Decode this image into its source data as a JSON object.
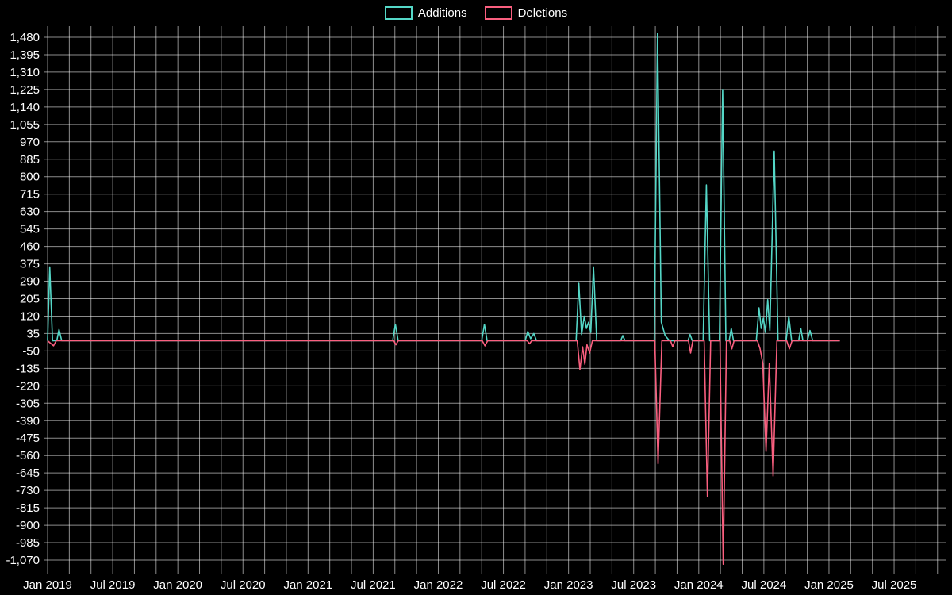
{
  "chart_data": {
    "type": "line",
    "title": "",
    "legend_position": "top-center",
    "grid": true,
    "background_color": "#000000",
    "grid_color": "rgba(255,255,255,0.55)",
    "text_color": "#ffffff",
    "x_axis": {
      "tick_labels": [
        "Jan 2019",
        "Jul 2019",
        "Jan 2020",
        "Jul 2020",
        "Jan 2021",
        "Jul 2021",
        "Jan 2022",
        "Jul 2022",
        "Jan 2023",
        "Jul 2023",
        "Jan 2024",
        "Jul 2024",
        "Jan 2025",
        "Jul 2025"
      ],
      "tick_month_offsets": [
        0,
        6,
        12,
        18,
        24,
        30,
        36,
        42,
        48,
        54,
        60,
        66,
        72,
        78
      ],
      "grid_month_step": 2,
      "max_month": 83
    },
    "y_axis": {
      "max": 1480,
      "min": -1070,
      "step": 85,
      "tick_values": [
        1480,
        1395,
        1310,
        1225,
        1140,
        1055,
        970,
        885,
        800,
        715,
        630,
        545,
        460,
        375,
        290,
        205,
        120,
        35,
        -50,
        -135,
        -220,
        -305,
        -390,
        -475,
        -560,
        -645,
        -730,
        -815,
        -900,
        -985,
        -1070
      ]
    },
    "series": [
      {
        "name": "Additions",
        "color": "#54d7c7",
        "points": [
          [
            0,
            0
          ],
          [
            0.2,
            360
          ],
          [
            0.45,
            0
          ],
          [
            0.85,
            0
          ],
          [
            1.05,
            55
          ],
          [
            1.3,
            0
          ],
          [
            31.8,
            0
          ],
          [
            32.05,
            80
          ],
          [
            32.3,
            0
          ],
          [
            40.0,
            0
          ],
          [
            40.25,
            80
          ],
          [
            40.5,
            0
          ],
          [
            44.0,
            0
          ],
          [
            44.25,
            45
          ],
          [
            44.5,
            10
          ],
          [
            44.8,
            35
          ],
          [
            45.05,
            0
          ],
          [
            48.7,
            0
          ],
          [
            48.95,
            280
          ],
          [
            49.2,
            30
          ],
          [
            49.45,
            120
          ],
          [
            49.65,
            60
          ],
          [
            49.85,
            90
          ],
          [
            50.05,
            40
          ],
          [
            50.3,
            360
          ],
          [
            50.6,
            0
          ],
          [
            52.8,
            0
          ],
          [
            53.0,
            25
          ],
          [
            53.2,
            0
          ],
          [
            55.9,
            0
          ],
          [
            56.2,
            1500
          ],
          [
            56.55,
            90
          ],
          [
            56.9,
            25
          ],
          [
            57.3,
            0
          ],
          [
            59.0,
            0
          ],
          [
            59.2,
            30
          ],
          [
            59.4,
            0
          ],
          [
            60.4,
            0
          ],
          [
            60.7,
            760
          ],
          [
            61.0,
            0
          ],
          [
            61.9,
            0
          ],
          [
            62.2,
            1225
          ],
          [
            62.5,
            0
          ],
          [
            62.8,
            0
          ],
          [
            63.0,
            60
          ],
          [
            63.2,
            0
          ],
          [
            65.3,
            0
          ],
          [
            65.55,
            160
          ],
          [
            65.75,
            60
          ],
          [
            65.95,
            110
          ],
          [
            66.15,
            40
          ],
          [
            66.35,
            200
          ],
          [
            66.55,
            50
          ],
          [
            66.95,
            925
          ],
          [
            67.3,
            0
          ],
          [
            68.05,
            0
          ],
          [
            68.3,
            120
          ],
          [
            68.55,
            0
          ],
          [
            69.2,
            0
          ],
          [
            69.4,
            60
          ],
          [
            69.6,
            0
          ],
          [
            70.0,
            0
          ],
          [
            70.25,
            50
          ],
          [
            70.5,
            0
          ],
          [
            73,
            0
          ]
        ]
      },
      {
        "name": "Deletions",
        "color": "#fa5f7f",
        "points": [
          [
            0,
            0
          ],
          [
            0.55,
            -25
          ],
          [
            0.8,
            0
          ],
          [
            31.9,
            0
          ],
          [
            32.1,
            -20
          ],
          [
            32.3,
            0
          ],
          [
            40.05,
            0
          ],
          [
            40.3,
            -25
          ],
          [
            40.55,
            0
          ],
          [
            44.2,
            0
          ],
          [
            44.4,
            -15
          ],
          [
            44.6,
            0
          ],
          [
            48.8,
            0
          ],
          [
            49.05,
            -140
          ],
          [
            49.3,
            -30
          ],
          [
            49.5,
            -115
          ],
          [
            49.7,
            -20
          ],
          [
            49.95,
            -60
          ],
          [
            50.2,
            0
          ],
          [
            55.95,
            0
          ],
          [
            56.25,
            -600
          ],
          [
            56.6,
            0
          ],
          [
            57.4,
            0
          ],
          [
            57.6,
            -30
          ],
          [
            57.8,
            0
          ],
          [
            59.05,
            0
          ],
          [
            59.25,
            -60
          ],
          [
            59.45,
            0
          ],
          [
            60.5,
            0
          ],
          [
            60.8,
            -760
          ],
          [
            61.1,
            0
          ],
          [
            61.95,
            0
          ],
          [
            62.25,
            -1090
          ],
          [
            62.55,
            0
          ],
          [
            62.85,
            0
          ],
          [
            63.05,
            -40
          ],
          [
            63.25,
            0
          ],
          [
            65.4,
            0
          ],
          [
            65.65,
            -40
          ],
          [
            65.9,
            -110
          ],
          [
            66.2,
            -540
          ],
          [
            66.5,
            -110
          ],
          [
            66.85,
            -660
          ],
          [
            67.2,
            0
          ],
          [
            68.1,
            0
          ],
          [
            68.35,
            -40
          ],
          [
            68.6,
            0
          ],
          [
            73,
            0
          ]
        ]
      }
    ]
  }
}
